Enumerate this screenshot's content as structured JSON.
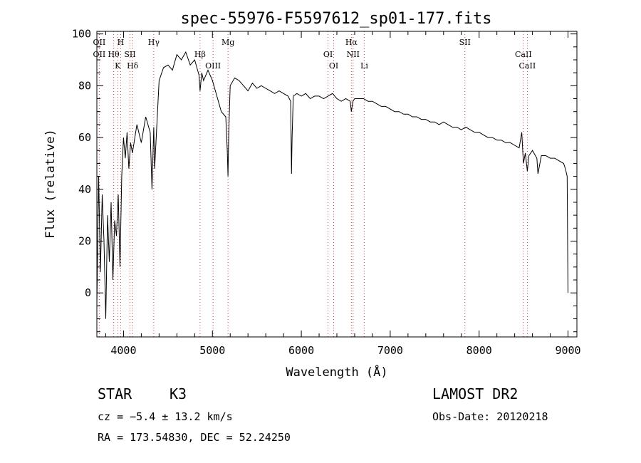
{
  "chart_data": {
    "type": "line",
    "title": "spec-55976-F5597612_sp01-177.fits",
    "xlabel": "Wavelength (Å)",
    "ylabel": "Flux (relative)",
    "xlim": [
      3700,
      9100
    ],
    "ylim": [
      -17,
      101
    ],
    "x_ticks": [
      4000,
      5000,
      6000,
      7000,
      8000,
      9000
    ],
    "y_ticks": [
      0,
      20,
      40,
      60,
      80,
      100
    ],
    "grid": false,
    "series": [
      {
        "x": [
          3700,
          3720,
          3740,
          3760,
          3780,
          3800,
          3820,
          3840,
          3860,
          3880,
          3900,
          3920,
          3940,
          3960,
          3980,
          4000,
          4020,
          4040,
          4060,
          4080,
          4100,
          4150,
          4200,
          4250,
          4300,
          4320,
          4340,
          4350,
          4400,
          4450,
          4500,
          4550,
          4600,
          4650,
          4700,
          4750,
          4800,
          4850,
          4861,
          4880,
          4900,
          4950,
          5000,
          5050,
          5100,
          5150,
          5167,
          5175,
          5184,
          5200,
          5250,
          5300,
          5350,
          5400,
          5450,
          5500,
          5550,
          5600,
          5650,
          5700,
          5750,
          5800,
          5850,
          5880,
          5890,
          5896,
          5910,
          5950,
          6000,
          6050,
          6100,
          6150,
          6200,
          6250,
          6300,
          6350,
          6400,
          6450,
          6500,
          6550,
          6563,
          6580,
          6600,
          6650,
          6700,
          6750,
          6800,
          6850,
          6900,
          6950,
          7000,
          7050,
          7100,
          7150,
          7200,
          7250,
          7300,
          7350,
          7400,
          7450,
          7500,
          7550,
          7600,
          7650,
          7700,
          7750,
          7800,
          7850,
          7900,
          7950,
          8000,
          8050,
          8100,
          8150,
          8200,
          8250,
          8300,
          8350,
          8400,
          8450,
          8480,
          8498,
          8520,
          8542,
          8560,
          8600,
          8650,
          8662,
          8700,
          8750,
          8800,
          8850,
          8900,
          8950,
          8970,
          8990,
          9000
        ],
        "y": [
          -5,
          45,
          8,
          38,
          20,
          -10,
          30,
          12,
          35,
          5,
          28,
          22,
          38,
          10,
          45,
          60,
          52,
          62,
          48,
          58,
          54,
          65,
          58,
          68,
          62,
          40,
          64,
          48,
          82,
          87,
          88,
          86,
          92,
          90,
          93,
          88,
          90,
          84,
          78,
          85,
          82,
          86,
          82,
          76,
          70,
          68,
          55,
          45,
          62,
          80,
          83,
          82,
          80,
          78,
          81,
          79,
          80,
          79,
          78,
          77,
          78,
          77,
          76,
          74,
          46,
          60,
          76,
          77,
          76,
          77,
          75,
          76,
          76,
          75,
          76,
          77,
          75,
          74,
          75,
          74,
          70,
          74,
          75,
          75,
          75,
          74,
          74,
          73,
          72,
          72,
          71,
          70,
          70,
          69,
          69,
          68,
          68,
          67,
          67,
          66,
          66,
          65,
          66,
          65,
          64,
          64,
          63,
          64,
          63,
          62,
          62,
          61,
          60,
          60,
          59,
          59,
          58,
          58,
          57,
          56,
          62,
          50,
          54,
          47,
          53,
          55,
          52,
          46,
          53,
          53,
          52,
          52,
          51,
          50,
          48,
          45,
          0
        ]
      }
    ],
    "lines": [
      {
        "x": 3727,
        "labels": [
          "OII",
          "OII"
        ]
      },
      {
        "x": 3889,
        "labels": [
          "Hθ"
        ]
      },
      {
        "x": 3934,
        "labels": [
          "K"
        ]
      },
      {
        "x": 3968,
        "labels": [
          "H"
        ]
      },
      {
        "x": 4072,
        "labels": [
          "SII"
        ]
      },
      {
        "x": 4102,
        "labels": [
          "Hδ"
        ]
      },
      {
        "x": 4340,
        "labels": [
          "Hγ"
        ]
      },
      {
        "x": 4861,
        "labels": [
          "Hβ"
        ]
      },
      {
        "x": 5007,
        "labels": [
          "OIII"
        ]
      },
      {
        "x": 5175,
        "labels": [
          "Mg"
        ]
      },
      {
        "x": 6300,
        "labels": [
          "OI"
        ]
      },
      {
        "x": 6364,
        "labels": [
          "OI"
        ]
      },
      {
        "x": 6563,
        "labels": [
          "Hα"
        ]
      },
      {
        "x": 6583,
        "labels": [
          "NII"
        ]
      },
      {
        "x": 6708,
        "labels": [
          "Li"
        ]
      },
      {
        "x": 7840,
        "labels": [
          "SII"
        ]
      },
      {
        "x": 8498,
        "labels": [
          "CaII"
        ]
      },
      {
        "x": 8542,
        "labels": [
          "CaII"
        ]
      }
    ],
    "colors": {
      "spectrum": "#000000",
      "lines": "#d04040",
      "axes": "#000000"
    }
  },
  "info": {
    "object_class": "STAR",
    "subclass": "K3",
    "survey": "LAMOST DR2",
    "cz": "cz = −5.4 ± 13.2 km/s",
    "obs_date": "Obs-Date: 20120218",
    "coords": "RA = 173.54830, DEC =  52.24250"
  }
}
